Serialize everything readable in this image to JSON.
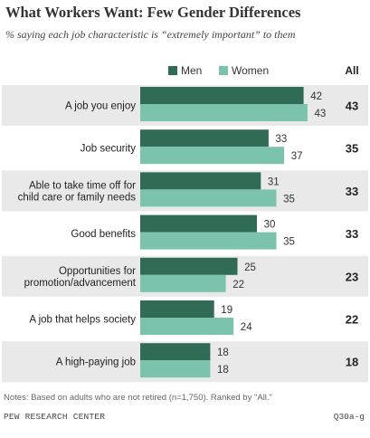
{
  "colors": {
    "men": "#2f6b55",
    "women": "#7cc3ad",
    "band": "#e9e9e9"
  },
  "footer": {
    "notes": "Notes: Based on adults who are not retired (n=1,750). Ranked by \"All.\"",
    "source": "PEW RESEARCH CENTER",
    "question_id": "Q30a-g"
  },
  "chart_data": {
    "type": "bar",
    "orientation": "horizontal",
    "title": "What Workers Want: Few Gender Differences",
    "subtitle": "% saying each job characteristic is “extremely important” to them",
    "legend_placement": "top",
    "all_header": "All",
    "categories": [
      [
        "A job you enjoy"
      ],
      [
        "Job security"
      ],
      [
        "Able to take time off for",
        "child care or family needs"
      ],
      [
        "Good benefits"
      ],
      [
        "Opportunities for",
        "promotion/advancement"
      ],
      [
        "A job that helps society"
      ],
      [
        "A high-paying job"
      ]
    ],
    "series": [
      {
        "name": "Men",
        "values": [
          42,
          33,
          31,
          30,
          25,
          19,
          18
        ]
      },
      {
        "name": "Women",
        "values": [
          43,
          37,
          35,
          35,
          22,
          24,
          18
        ]
      }
    ],
    "all": [
      43,
      35,
      33,
      33,
      23,
      22,
      18
    ],
    "xlim": [
      0,
      50
    ],
    "grid": false
  }
}
